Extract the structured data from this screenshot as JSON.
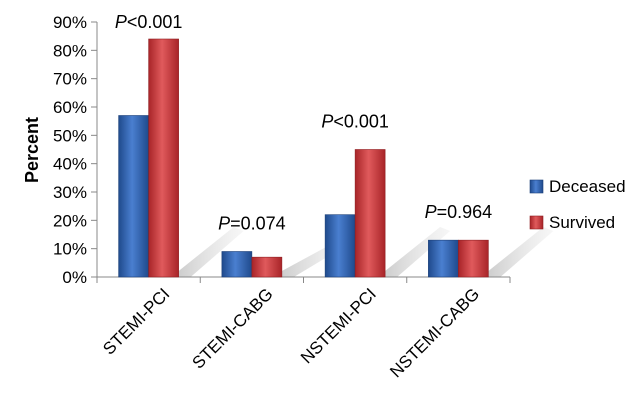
{
  "chart_data": {
    "type": "bar",
    "ylabel": "Percent",
    "xlabel": "",
    "ylim": [
      0,
      90
    ],
    "y_ticks": [
      "0%",
      "10%",
      "20%",
      "30%",
      "40%",
      "50%",
      "60%",
      "70%",
      "80%",
      "90%"
    ],
    "categories": [
      "STEMI-PCI",
      "STEMI-CABG",
      "NSTEMI-PCI",
      "NSTEMI-CABG"
    ],
    "series": [
      {
        "name": "Deceased",
        "values": [
          57,
          9,
          22,
          13
        ],
        "color": "#2e5fa8"
      },
      {
        "name": "Survived",
        "values": [
          84,
          7,
          45,
          13
        ],
        "color": "#c9363a"
      }
    ],
    "annotations": [
      {
        "p": "P",
        "rest": "<0.001"
      },
      {
        "p": "P",
        "rest": "=0.074"
      },
      {
        "p": "P",
        "rest": "<0.001"
      },
      {
        "p": "P",
        "rest": "=0.964"
      }
    ],
    "legend_position": "right",
    "grid": false
  }
}
